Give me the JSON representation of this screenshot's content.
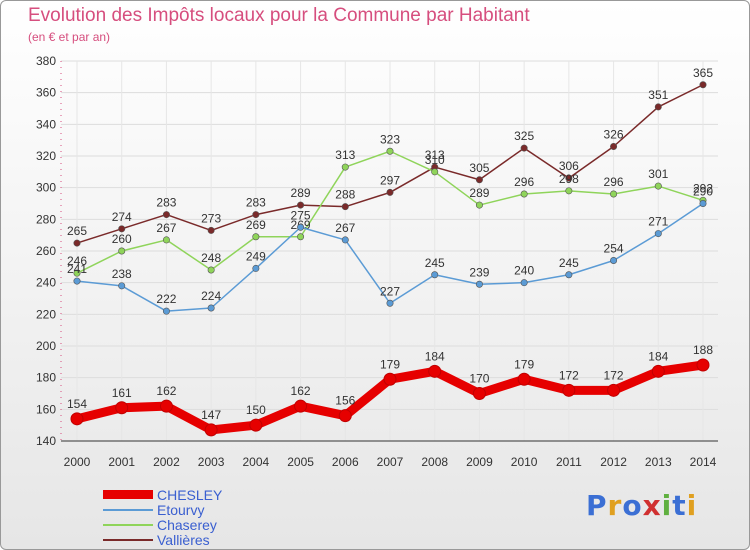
{
  "header": {
    "title": "Evolution des Impôts locaux pour la Commune par Habitant",
    "subtitle": "(en € et par an)"
  },
  "logo": {
    "text": "Proxiti"
  },
  "colors": {
    "title": "#d64e7e",
    "legend_text": "#3a5fd0",
    "grid": "#dddddd"
  },
  "chart_data": {
    "type": "line",
    "title": "Evolution des Impôts locaux pour la Commune par Habitant",
    "subtitle": "(en € et par an)",
    "categories": [
      "2000",
      "2001",
      "2002",
      "2003",
      "2004",
      "2005",
      "2006",
      "2007",
      "2008",
      "2009",
      "2010",
      "2011",
      "2012",
      "2013",
      "2014"
    ],
    "ylim": [
      140,
      380
    ],
    "yticks": [
      140,
      160,
      180,
      200,
      220,
      240,
      260,
      280,
      300,
      320,
      340,
      360,
      380
    ],
    "grid": true,
    "legend_position": "bottom-left",
    "series": [
      {
        "name": "CHESLEY",
        "color": "#e60000",
        "bold": true,
        "values": [
          154,
          161,
          162,
          147,
          150,
          162,
          156,
          179,
          184,
          170,
          179,
          172,
          172,
          184,
          188
        ]
      },
      {
        "name": "Etourvy",
        "color": "#5b9bd5",
        "bold": false,
        "values": [
          241,
          238,
          222,
          224,
          249,
          275,
          267,
          227,
          245,
          239,
          240,
          245,
          254,
          271,
          290
        ]
      },
      {
        "name": "Chaserey",
        "color": "#8fd45a",
        "bold": false,
        "values": [
          246,
          260,
          267,
          248,
          269,
          269,
          313,
          323,
          310,
          289,
          296,
          298,
          296,
          301,
          292
        ]
      },
      {
        "name": "Vallières",
        "color": "#7a2a2a",
        "bold": false,
        "values": [
          265,
          274,
          283,
          273,
          283,
          289,
          288,
          297,
          313,
          305,
          325,
          306,
          326,
          351,
          365
        ]
      }
    ]
  }
}
